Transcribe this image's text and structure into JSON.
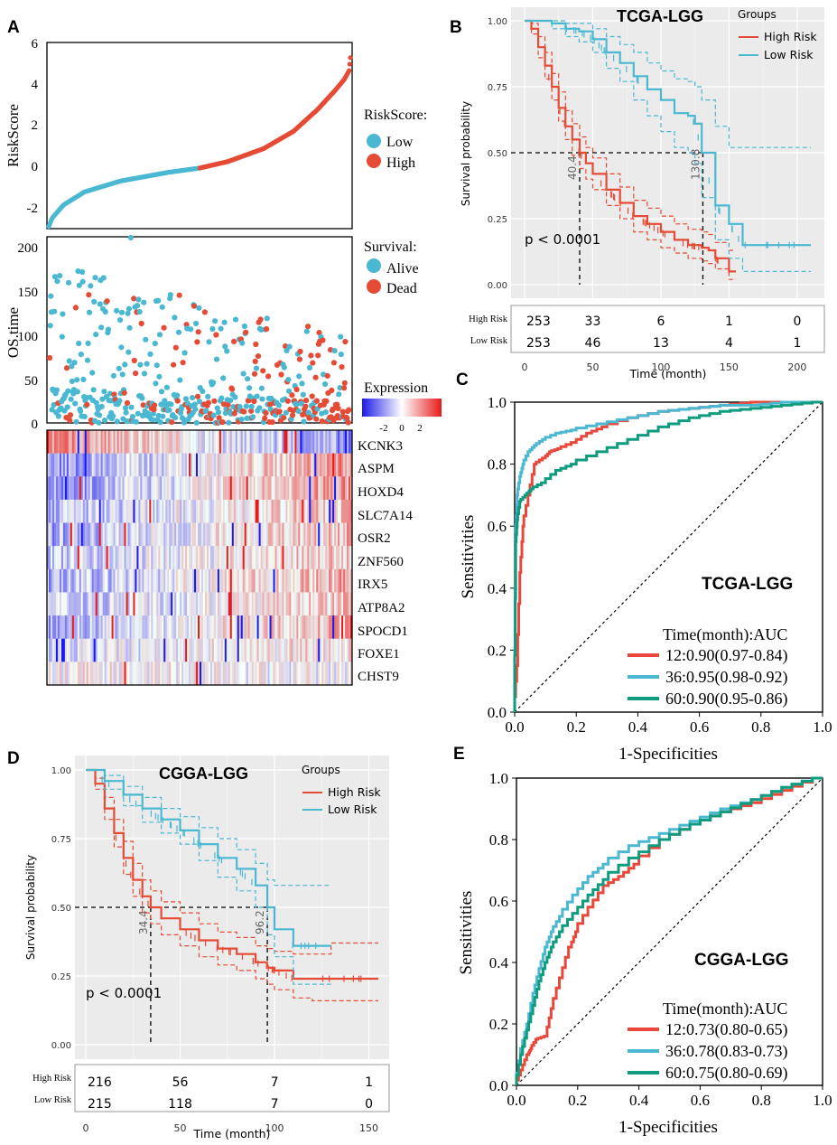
{
  "colors": {
    "low": "#4bb8d2",
    "high": "#e64b35",
    "roc12": "#e8483a",
    "roc36": "#4bb8d2",
    "roc60": "#0f9b7d",
    "heat_low": "#2020e0",
    "heat_high": "#e02020"
  },
  "panel_a": {
    "label": "A",
    "riskscore": {
      "ylabel": "RiskScore",
      "yticks": [
        "6",
        "4",
        "2",
        "0",
        "-2"
      ],
      "legend_title": "RiskScore:",
      "legend_items": [
        "Low",
        "High"
      ]
    },
    "os": {
      "ylabel": "OS.time",
      "yticks": [
        "200",
        "150",
        "100",
        "50",
        "0"
      ],
      "legend_title": "Survival:",
      "legend_items": [
        "Alive",
        "Dead"
      ]
    },
    "expression": {
      "legend_title": "Expression",
      "legend_ticks": [
        "-2",
        "0",
        "2"
      ],
      "genes": [
        "KCNK3",
        "ASPM",
        "HOXD4",
        "SLC7A14",
        "OSR2",
        "ZNF560",
        "IRX5",
        "ATP8A2",
        "SPOCD1",
        "FOXE1",
        "CHST9"
      ]
    }
  },
  "panel_b": {
    "label": "B",
    "title": "TCGA-LGG",
    "legend_title": "Groups",
    "legend_items": [
      "High Risk",
      "Low Risk"
    ],
    "ylabel": "Survival probability",
    "xlabel": "Time (month)",
    "pvalue": "p < 0.0001",
    "median_labels": [
      "40.4",
      "130.8"
    ],
    "risk_rows": [
      "High Risk",
      "Low Risk"
    ],
    "risk_counts": [
      [
        "253",
        "33",
        "6",
        "1",
        "0"
      ],
      [
        "253",
        "46",
        "13",
        "4",
        "1"
      ]
    ]
  },
  "panel_c": {
    "label": "C",
    "title": "TCGA-LGG",
    "ylabel": "Sensitivities",
    "xlabel": "1-Specificities",
    "legend_title": "Time(month):AUC",
    "legend_items": [
      "12:0.90(0.97-0.84)",
      "36:0.95(0.98-0.92)",
      "60:0.90(0.95-0.86)"
    ]
  },
  "panel_d": {
    "label": "D",
    "title": "CGGA-LGG",
    "legend_title": "Groups",
    "legend_items": [
      "High Risk",
      "Low Risk"
    ],
    "ylabel": "Survival probability",
    "xlabel": "Time (month)",
    "pvalue": "p < 0.0001",
    "median_labels": [
      "34.4",
      "96.2"
    ],
    "risk_rows": [
      "High Risk",
      "Low Risk"
    ],
    "risk_counts": [
      [
        "216",
        "56",
        "7",
        "1"
      ],
      [
        "215",
        "118",
        "7",
        "0"
      ]
    ]
  },
  "panel_e": {
    "label": "E",
    "title": "CGGA-LGG",
    "ylabel": "Sensitivities",
    "xlabel": "1-Specificities",
    "legend_title": "Time(month):AUC",
    "legend_items": [
      "12:0.73(0.80-0.65)",
      "36:0.78(0.83-0.73)",
      "60:0.75(0.80-0.69)"
    ]
  },
  "chart_data": [
    {
      "type": "scatter",
      "id": "riskscore",
      "title": "",
      "xlabel": "",
      "ylabel": "RiskScore",
      "ylim": [
        -2.6,
        6
      ],
      "n": 506,
      "cutoff_rank": 253,
      "series": [
        {
          "name": "Low"
        },
        {
          "name": "High"
        }
      ],
      "knots_rank": [
        0,
        6,
        25,
        60,
        120,
        200,
        253,
        300,
        360,
        410,
        450,
        480,
        495,
        503,
        506
      ],
      "knots_score": [
        -2.5,
        -2.1,
        -1.5,
        -0.9,
        -0.4,
        0.0,
        0.2,
        0.5,
        1.1,
        1.9,
        2.9,
        3.8,
        4.3,
        4.7,
        5.6
      ]
    },
    {
      "type": "scatter",
      "id": "os_time",
      "ylabel": "OS.time",
      "ylim": [
        0,
        210
      ],
      "n": 506,
      "series": [
        {
          "name": "Alive"
        },
        {
          "name": "Dead"
        }
      ]
    },
    {
      "type": "heatmap",
      "id": "expression",
      "rows": [
        "KCNK3",
        "ASPM",
        "HOXD4",
        "SLC7A14",
        "OSR2",
        "ZNF560",
        "IRX5",
        "ATP8A2",
        "SPOCD1",
        "FOXE1",
        "CHST9"
      ],
      "trend": [
        -1,
        1,
        1,
        0.6,
        0.8,
        0.5,
        0.8,
        0.5,
        0.7,
        0.3,
        -0.1
      ],
      "value_range": [
        -3,
        3
      ]
    },
    {
      "type": "line",
      "id": "km_tcga",
      "title": "TCGA-LGG",
      "xlabel": "Time (month)",
      "ylabel": "Survival probability",
      "xlim": [
        0,
        210
      ],
      "ylim": [
        0,
        1
      ],
      "xticks": [
        0,
        50,
        100,
        150,
        200
      ],
      "yticks": [
        0,
        0.25,
        0.5,
        0.75,
        1
      ],
      "medians": [
        40.4,
        130.8
      ],
      "series": [
        {
          "name": "High Risk",
          "x": [
            0,
            5,
            10,
            15,
            20,
            25,
            30,
            35,
            40.4,
            45,
            50,
            60,
            70,
            80,
            90,
            100,
            110,
            120,
            130,
            135,
            140,
            150,
            155
          ],
          "y": [
            1,
            0.97,
            0.9,
            0.83,
            0.75,
            0.67,
            0.6,
            0.55,
            0.5,
            0.46,
            0.42,
            0.36,
            0.31,
            0.26,
            0.23,
            0.2,
            0.17,
            0.15,
            0.14,
            0.13,
            0.1,
            0.05,
            0.05
          ],
          "ci_upper": [
            1,
            0.99,
            0.94,
            0.88,
            0.8,
            0.73,
            0.66,
            0.61,
            0.56,
            0.52,
            0.48,
            0.42,
            0.37,
            0.32,
            0.29,
            0.26,
            0.23,
            0.21,
            0.2,
            0.19,
            0.16,
            0.13,
            0.13
          ],
          "ci_lower": [
            1,
            0.95,
            0.86,
            0.78,
            0.7,
            0.62,
            0.55,
            0.49,
            0.44,
            0.4,
            0.36,
            0.3,
            0.25,
            0.2,
            0.17,
            0.14,
            0.12,
            0.1,
            0.09,
            0.08,
            0.06,
            0.02,
            0.02
          ]
        },
        {
          "name": "Low Risk",
          "x": [
            0,
            20,
            30,
            40,
            50,
            60,
            70,
            80,
            90,
            100,
            110,
            120,
            125,
            130,
            140,
            150,
            160,
            180,
            210
          ],
          "y": [
            1,
            0.99,
            0.97,
            0.96,
            0.93,
            0.88,
            0.84,
            0.79,
            0.74,
            0.7,
            0.65,
            0.64,
            0.61,
            0.5,
            0.3,
            0.23,
            0.15,
            0.15,
            0.15
          ],
          "ci_upper": [
            1,
            1,
            0.99,
            0.99,
            0.97,
            0.94,
            0.91,
            0.88,
            0.84,
            0.81,
            0.78,
            0.77,
            0.75,
            0.7,
            0.6,
            0.52,
            0.52,
            0.52,
            0.52
          ],
          "ci_lower": [
            1,
            0.97,
            0.94,
            0.92,
            0.88,
            0.82,
            0.77,
            0.7,
            0.64,
            0.58,
            0.52,
            0.5,
            0.46,
            0.33,
            0.17,
            0.1,
            0.05,
            0.05,
            0.05
          ]
        }
      ]
    },
    {
      "type": "line",
      "id": "roc_tcga",
      "title": "TCGA-LGG",
      "xlabel": "1-Specificities",
      "ylabel": "Sensitivities",
      "xlim": [
        0,
        1
      ],
      "ylim": [
        0,
        1
      ],
      "series": [
        {
          "name": "12:0.90(0.97-0.84)",
          "x": [
            0,
            0.01,
            0.02,
            0.03,
            0.05,
            0.07,
            0.1,
            0.12,
            0.15,
            0.2,
            0.25,
            0.3,
            0.4,
            0.5,
            0.6,
            0.7,
            0.8,
            0.9,
            1
          ],
          "y": [
            0,
            0.15,
            0.45,
            0.6,
            0.7,
            0.8,
            0.82,
            0.84,
            0.85,
            0.87,
            0.9,
            0.92,
            0.95,
            0.97,
            0.98,
            0.99,
            1,
            1,
            1
          ]
        },
        {
          "name": "36:0.95(0.98-0.92)",
          "x": [
            0,
            0.005,
            0.01,
            0.02,
            0.03,
            0.05,
            0.07,
            0.1,
            0.15,
            0.2,
            0.3,
            0.4,
            0.5,
            0.6,
            0.7,
            0.8,
            0.9,
            1
          ],
          "y": [
            0,
            0.6,
            0.7,
            0.76,
            0.8,
            0.84,
            0.86,
            0.88,
            0.9,
            0.91,
            0.93,
            0.95,
            0.97,
            0.98,
            0.99,
            0.99,
            1,
            1
          ]
        },
        {
          "name": "60:0.90(0.95-0.86)",
          "x": [
            0,
            0.005,
            0.01,
            0.02,
            0.04,
            0.06,
            0.1,
            0.15,
            0.2,
            0.3,
            0.4,
            0.5,
            0.6,
            0.7,
            0.8,
            0.9,
            1
          ],
          "y": [
            0,
            0.55,
            0.62,
            0.68,
            0.7,
            0.72,
            0.74,
            0.78,
            0.8,
            0.84,
            0.88,
            0.92,
            0.95,
            0.97,
            0.98,
            0.99,
            1
          ]
        }
      ]
    },
    {
      "type": "line",
      "id": "km_cgga",
      "title": "CGGA-LGG",
      "xlabel": "Time (month)",
      "ylabel": "Survival probability",
      "xlim": [
        0,
        155
      ],
      "ylim": [
        0,
        1
      ],
      "xticks": [
        0,
        50,
        100,
        150
      ],
      "yticks": [
        0,
        0.25,
        0.5,
        0.75,
        1
      ],
      "medians": [
        34.4,
        96.2
      ],
      "series": [
        {
          "name": "High Risk",
          "x": [
            0,
            5,
            10,
            15,
            20,
            25,
            30,
            34.4,
            40,
            50,
            60,
            70,
            80,
            90,
            96,
            100,
            110,
            120,
            130,
            140,
            155
          ],
          "y": [
            1,
            0.95,
            0.86,
            0.77,
            0.68,
            0.6,
            0.54,
            0.5,
            0.46,
            0.42,
            0.38,
            0.35,
            0.33,
            0.3,
            0.28,
            0.27,
            0.24,
            0.24,
            0.24,
            0.24,
            0.24
          ],
          "ci_upper": [
            1,
            0.97,
            0.9,
            0.82,
            0.74,
            0.66,
            0.6,
            0.56,
            0.52,
            0.48,
            0.44,
            0.41,
            0.39,
            0.36,
            0.35,
            0.34,
            0.33,
            0.33,
            0.37,
            0.37,
            0.37
          ],
          "ci_lower": [
            1,
            0.93,
            0.82,
            0.72,
            0.62,
            0.54,
            0.48,
            0.44,
            0.4,
            0.36,
            0.32,
            0.29,
            0.27,
            0.24,
            0.22,
            0.2,
            0.17,
            0.16,
            0.16,
            0.16,
            0.16
          ]
        },
        {
          "name": "Low Risk",
          "x": [
            0,
            10,
            20,
            30,
            40,
            50,
            60,
            70,
            80,
            90,
            96.2,
            100,
            110,
            120,
            130
          ],
          "y": [
            1,
            0.96,
            0.91,
            0.86,
            0.82,
            0.78,
            0.73,
            0.68,
            0.64,
            0.58,
            0.5,
            0.42,
            0.36,
            0.36,
            0.36
          ],
          "ci_upper": [
            1,
            0.98,
            0.94,
            0.9,
            0.86,
            0.83,
            0.79,
            0.75,
            0.71,
            0.66,
            0.6,
            0.58,
            0.58,
            0.58,
            0.58
          ],
          "ci_lower": [
            1,
            0.93,
            0.87,
            0.81,
            0.77,
            0.73,
            0.67,
            0.61,
            0.56,
            0.5,
            0.4,
            0.32,
            0.22,
            0.22,
            0.22
          ]
        }
      ]
    },
    {
      "type": "line",
      "id": "roc_cgga",
      "title": "CGGA-LGG",
      "xlabel": "1-Specificities",
      "ylabel": "Sensitivities",
      "xlim": [
        0,
        1
      ],
      "ylim": [
        0,
        1
      ],
      "series": [
        {
          "name": "12:0.73(0.80-0.65)",
          "x": [
            0,
            0.02,
            0.04,
            0.05,
            0.07,
            0.1,
            0.12,
            0.15,
            0.18,
            0.2,
            0.25,
            0.3,
            0.35,
            0.4,
            0.5,
            0.6,
            0.7,
            0.8,
            0.9,
            1
          ],
          "y": [
            0,
            0.05,
            0.1,
            0.12,
            0.15,
            0.16,
            0.25,
            0.35,
            0.45,
            0.5,
            0.58,
            0.65,
            0.68,
            0.72,
            0.8,
            0.85,
            0.89,
            0.92,
            0.96,
            1
          ]
        },
        {
          "name": "36:0.78(0.83-0.73)",
          "x": [
            0,
            0.02,
            0.04,
            0.06,
            0.08,
            0.1,
            0.12,
            0.15,
            0.2,
            0.25,
            0.3,
            0.4,
            0.5,
            0.6,
            0.7,
            0.8,
            0.9,
            1
          ],
          "y": [
            0,
            0.12,
            0.2,
            0.3,
            0.38,
            0.45,
            0.5,
            0.55,
            0.62,
            0.68,
            0.72,
            0.78,
            0.82,
            0.86,
            0.9,
            0.93,
            0.97,
            1
          ]
        },
        {
          "name": "60:0.75(0.80-0.69)",
          "x": [
            0,
            0.02,
            0.04,
            0.06,
            0.08,
            0.1,
            0.12,
            0.15,
            0.2,
            0.25,
            0.3,
            0.4,
            0.5,
            0.6,
            0.7,
            0.8,
            0.9,
            1
          ],
          "y": [
            0,
            0.1,
            0.18,
            0.26,
            0.34,
            0.4,
            0.45,
            0.5,
            0.56,
            0.62,
            0.67,
            0.74,
            0.8,
            0.85,
            0.89,
            0.93,
            0.97,
            1
          ]
        }
      ]
    }
  ]
}
